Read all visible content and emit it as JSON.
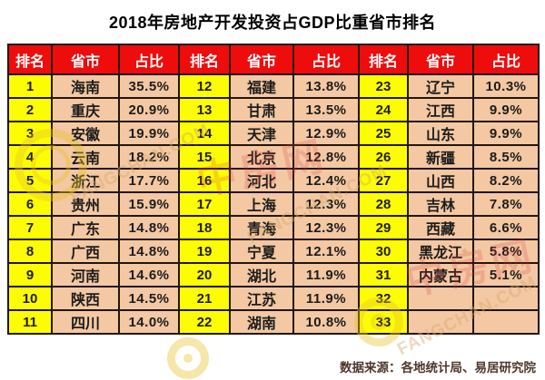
{
  "title": "2018年房地产开发投资占GDP比重省市排名",
  "source_note": "数据来源：各地统计局、易居研究院",
  "colors": {
    "header_bg": "#ee0c0c",
    "header_text": "#ffffff",
    "rank_bg": "#fdfd02",
    "cell_bg": "#f3c8a2",
    "border": "#221510",
    "title_text": "#000000",
    "source_text": "#4e362b"
  },
  "watermarks": {
    "site_text": "FANGCHAN.COM",
    "stamp_text": "中房网"
  },
  "chart_data": {
    "type": "table",
    "title": "2018年房地产开发投资占GDP比重省市排名",
    "columns": [
      "排名",
      "省市",
      "占比"
    ],
    "column_groups": 3,
    "rows": [
      [
        1,
        "海南",
        "35.5%"
      ],
      [
        2,
        "重庆",
        "20.9%"
      ],
      [
        3,
        "安徽",
        "19.9%"
      ],
      [
        4,
        "云南",
        "18.2%"
      ],
      [
        5,
        "浙江",
        "17.7%"
      ],
      [
        6,
        "贵州",
        "15.9%"
      ],
      [
        7,
        "广东",
        "14.8%"
      ],
      [
        8,
        "广西",
        "14.8%"
      ],
      [
        9,
        "河南",
        "14.6%"
      ],
      [
        10,
        "陕西",
        "14.5%"
      ],
      [
        11,
        "四川",
        "14.0%"
      ],
      [
        12,
        "福建",
        "13.8%"
      ],
      [
        13,
        "甘肃",
        "13.5%"
      ],
      [
        14,
        "天津",
        "12.9%"
      ],
      [
        15,
        "北京",
        "12.8%"
      ],
      [
        16,
        "河北",
        "12.4%"
      ],
      [
        17,
        "上海",
        "12.3%"
      ],
      [
        18,
        "青海",
        "12.3%"
      ],
      [
        19,
        "宁夏",
        "12.1%"
      ],
      [
        20,
        "湖北",
        "11.9%"
      ],
      [
        21,
        "江苏",
        "11.9%"
      ],
      [
        22,
        "湖南",
        "10.8%"
      ],
      [
        23,
        "辽宁",
        "10.3%"
      ],
      [
        24,
        "江西",
        "9.9%"
      ],
      [
        25,
        "山东",
        "9.9%"
      ],
      [
        26,
        "新疆",
        "8.5%"
      ],
      [
        27,
        "山西",
        "8.2%"
      ],
      [
        28,
        "吉林",
        "7.8%"
      ],
      [
        29,
        "西藏",
        "6.6%"
      ],
      [
        30,
        "黑龙江",
        "5.8%"
      ],
      [
        31,
        "内蒙古",
        "5.1%"
      ],
      [
        32,
        "",
        ""
      ],
      [
        33,
        "",
        ""
      ]
    ],
    "source": "数据来源：各地统计局、易居研究院"
  }
}
